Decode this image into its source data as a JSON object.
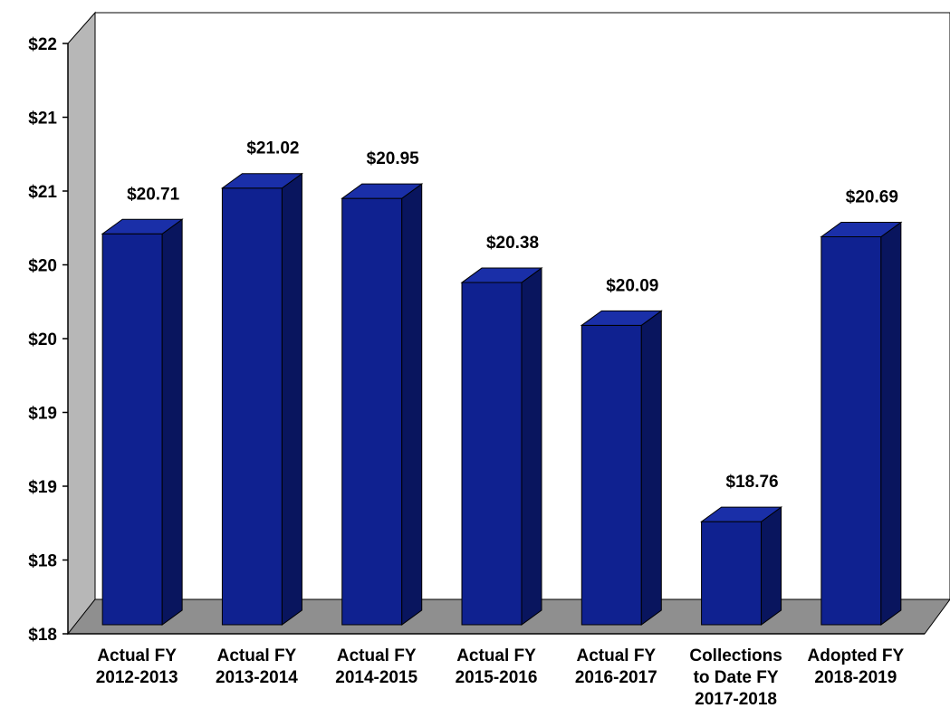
{
  "chart_data": {
    "type": "bar",
    "categories": [
      [
        "Actual FY",
        "2012-2013"
      ],
      [
        "Actual FY",
        "2013-2014"
      ],
      [
        "Actual FY",
        "2014-2015"
      ],
      [
        "Actual FY",
        "2015-2016"
      ],
      [
        "Actual FY",
        "2016-2017"
      ],
      [
        "Collections",
        "to Date FY",
        "2017-2018"
      ],
      [
        "Adopted FY",
        "2018-2019"
      ]
    ],
    "values": [
      20.71,
      21.02,
      20.95,
      20.38,
      20.09,
      18.76,
      20.69
    ],
    "data_labels": [
      "$20.71",
      "$21.02",
      "$20.95",
      "$20.38",
      "$20.09",
      "$18.76",
      "$20.69"
    ],
    "y_ticks": [
      {
        "value": 18.0,
        "label": "$18"
      },
      {
        "value": 18.5,
        "label": "$18"
      },
      {
        "value": 19.0,
        "label": "$19"
      },
      {
        "value": 19.5,
        "label": "$19"
      },
      {
        "value": 20.0,
        "label": "$20"
      },
      {
        "value": 20.5,
        "label": "$20"
      },
      {
        "value": 21.0,
        "label": "$21"
      },
      {
        "value": 21.5,
        "label": "$21"
      },
      {
        "value": 22.0,
        "label": "$22"
      }
    ],
    "ylim": [
      18,
      22
    ],
    "title": "",
    "xlabel": "",
    "ylabel": "",
    "grid": false,
    "legend": "none",
    "style": "3d",
    "colors": {
      "bar_front": "#0f2190",
      "bar_side": "#09155e",
      "bar_top": "#1a2fa8",
      "wall": "#b7b7b7",
      "floor": "#8f8f8f"
    }
  }
}
